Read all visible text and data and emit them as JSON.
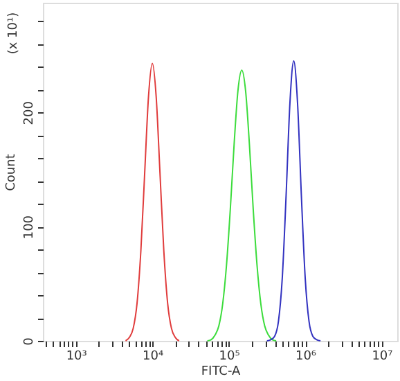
{
  "chart_data": {
    "type": "line",
    "xlabel": "FITC-A",
    "ylabel": "Count",
    "log": "x",
    "annotations": [
      "(x 10¹)"
    ],
    "xlim": [
      370,
      16000000
    ],
    "ylim": [
      0,
      296
    ],
    "xticks": [
      {
        "value": 400,
        "label": null
      },
      {
        "value": 500,
        "label": null
      },
      {
        "value": 600,
        "label": null
      },
      {
        "value": 700,
        "label": null
      },
      {
        "value": 800,
        "label": null
      },
      {
        "value": 900,
        "label": null
      },
      {
        "value": 1000,
        "label": "10³"
      },
      {
        "value": 2000,
        "label": null
      },
      {
        "value": 3000,
        "label": null
      },
      {
        "value": 4000,
        "label": null
      },
      {
        "value": 5000,
        "label": null
      },
      {
        "value": 6000,
        "label": null
      },
      {
        "value": 7000,
        "label": null
      },
      {
        "value": 8000,
        "label": null
      },
      {
        "value": 9000,
        "label": null
      },
      {
        "value": 10000,
        "label": "10⁴"
      },
      {
        "value": 20000,
        "label": null
      },
      {
        "value": 30000,
        "label": null
      },
      {
        "value": 40000,
        "label": null
      },
      {
        "value": 50000,
        "label": null
      },
      {
        "value": 60000,
        "label": null
      },
      {
        "value": 70000,
        "label": null
      },
      {
        "value": 80000,
        "label": null
      },
      {
        "value": 90000,
        "label": null
      },
      {
        "value": 100000,
        "label": "10⁵"
      },
      {
        "value": 200000,
        "label": null
      },
      {
        "value": 300000,
        "label": null
      },
      {
        "value": 400000,
        "label": null
      },
      {
        "value": 500000,
        "label": null
      },
      {
        "value": 600000,
        "label": null
      },
      {
        "value": 700000,
        "label": null
      },
      {
        "value": 800000,
        "label": null
      },
      {
        "value": 900000,
        "label": null
      },
      {
        "value": 1000000,
        "label": "10⁶"
      },
      {
        "value": 2000000,
        "label": null
      },
      {
        "value": 3000000,
        "label": null
      },
      {
        "value": 4000000,
        "label": null
      },
      {
        "value": 5000000,
        "label": null
      },
      {
        "value": 6000000,
        "label": null
      },
      {
        "value": 7000000,
        "label": null
      },
      {
        "value": 8000000,
        "label": null
      },
      {
        "value": 9000000,
        "label": null
      },
      {
        "value": 10000000,
        "label": "10⁷"
      }
    ],
    "yticks": [
      0,
      {
        "value": 20,
        "label": null
      },
      {
        "value": 40,
        "label": null
      },
      {
        "value": 60,
        "label": null
      },
      {
        "value": 80,
        "label": null
      },
      100,
      {
        "value": 120,
        "label": null
      },
      {
        "value": 140,
        "label": null
      },
      {
        "value": 160,
        "label": null
      },
      {
        "value": 180,
        "label": null
      },
      200,
      {
        "value": 220,
        "label": null
      },
      {
        "value": 240,
        "label": null
      },
      {
        "value": 260,
        "label": null
      },
      {
        "value": 280,
        "label": null
      }
    ],
    "grid": false,
    "marker": "none",
    "line_style": "solid",
    "series": [
      {
        "color": "#e03c3c",
        "x": [
          4467,
          5012,
          5623,
          6310,
          7079,
          7943,
          8913,
          10000,
          11220,
          12589,
          14125,
          15849,
          17783,
          19953,
          22387
        ],
        "values": [
          0,
          3,
          11,
          33,
          79,
          147,
          214,
          243,
          214,
          147,
          79,
          33,
          11,
          3,
          0
        ]
      },
      {
        "color": "#3cdc3c",
        "x": [
          52481,
          58884,
          66069,
          74131,
          83176,
          93325,
          104713,
          117490,
          131826,
          147911,
          165959,
          186209,
          208930,
          234423,
          263027,
          295121,
          331131,
          371535,
          416869
        ],
        "values": [
          0,
          1,
          5,
          13,
          32,
          66,
          115,
          172,
          219,
          237,
          219,
          172,
          115,
          66,
          32,
          13,
          5,
          1,
          0
        ]
      },
      {
        "color": "#3232c0",
        "x": [
          316228,
          354813,
          398107,
          446684,
          501187,
          562341,
          630957,
          707946,
          794328,
          891251,
          1000000,
          1122018,
          1258925,
          1412538,
          1584893
        ],
        "values": [
          0,
          1,
          4,
          17,
          55,
          127,
          208,
          245,
          208,
          127,
          55,
          17,
          4,
          1,
          0
        ]
      }
    ]
  }
}
